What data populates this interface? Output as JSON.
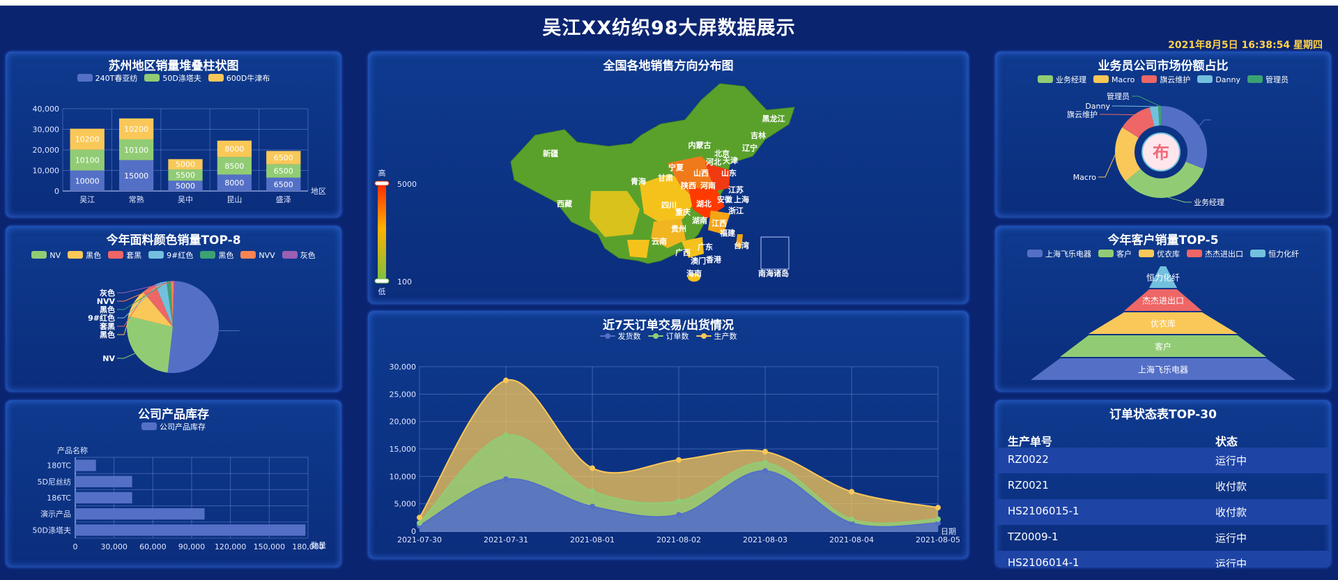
{
  "page": {
    "title": "吴江XX纺织98大屏数据展示",
    "datetime": "2021年8月5日 16:38:54 星期四"
  },
  "panels": {
    "p1": {
      "title": "苏州地区销量堆叠柱状图"
    },
    "p2": {
      "title": "今年面料颜色销量TOP-8"
    },
    "p3": {
      "title": "公司产品库存"
    },
    "p4": {
      "title": "全国各地销售方向分布图"
    },
    "p5": {
      "title": "近7天订单交易/出货情况"
    },
    "p6": {
      "title": "业务员公司市场份额占比"
    },
    "p7": {
      "title": "今年客户销量TOP-5"
    },
    "p8": {
      "title": "订单状态表TOP-30"
    }
  },
  "colors": {
    "blue": "#5470c6",
    "green": "#91cc75",
    "yellow": "#fac858",
    "red": "#ee6666",
    "cyan": "#73c0de",
    "teal": "#3ba272",
    "orange": "#fc8452",
    "purple": "#9a60b4"
  },
  "chart_data": [
    {
      "id": "stacked-bar",
      "type": "bar",
      "stacked": true,
      "categories": [
        "吴江",
        "常熟",
        "吴中",
        "昆山",
        "盛泽"
      ],
      "series": [
        {
          "name": "240T春亚纺",
          "color": "#5470c6",
          "values": [
            10000,
            15000,
            5000,
            8000,
            6500
          ]
        },
        {
          "name": "50D涤塔夫",
          "color": "#91cc75",
          "values": [
            10100,
            10100,
            5500,
            8500,
            6500
          ]
        },
        {
          "name": "600D牛津布",
          "color": "#fac858",
          "values": [
            10200,
            10200,
            5000,
            8000,
            6500
          ]
        }
      ],
      "ylim": [
        0,
        40000
      ],
      "yticks": [
        "0",
        "10,000",
        "20,000",
        "30,000",
        "40,000"
      ],
      "xlabel": "地区"
    },
    {
      "id": "color-pie",
      "type": "pie",
      "legend": [
        {
          "name": "NV",
          "color": "#91cc75"
        },
        {
          "name": "黑色",
          "color": "#fac858"
        },
        {
          "name": "套黑",
          "color": "#ee6666"
        },
        {
          "name": "9#红色",
          "color": "#73c0de"
        },
        {
          "name": "黑色",
          "color": "#3ba272"
        },
        {
          "name": "NVV",
          "color": "#fc8452"
        },
        {
          "name": "灰色",
          "color": "#9a60b4"
        }
      ],
      "slices": [
        {
          "name": "",
          "value": 51,
          "color": "#5470c6"
        },
        {
          "name": "NV",
          "value": 27,
          "color": "#91cc75"
        },
        {
          "name": "黑色",
          "value": 10,
          "color": "#fac858"
        },
        {
          "name": "套黑",
          "value": 5,
          "color": "#ee6666"
        },
        {
          "name": "9#红色",
          "value": 4,
          "color": "#73c0de"
        },
        {
          "name": "黑色",
          "value": 1.5,
          "color": "#3ba272"
        },
        {
          "name": "NVV",
          "value": 1,
          "color": "#fc8452"
        },
        {
          "name": "灰色",
          "value": 0.5,
          "color": "#9a60b4"
        }
      ]
    },
    {
      "id": "inventory-bar",
      "type": "bar",
      "orientation": "horizontal",
      "legend": "公司产品库存",
      "ylabel": "产品名称",
      "xlabel": "数量",
      "categories": [
        "180TC",
        "5D尼丝纺",
        "186TC",
        "演示产品",
        "50D涤塔夫"
      ],
      "values": [
        16000,
        44000,
        44000,
        100000,
        178000
      ],
      "xlim": [
        0,
        180000
      ],
      "xticks": [
        "0",
        "30,000",
        "60,000",
        "90,000",
        "120,000",
        "150,000",
        "180,000"
      ]
    },
    {
      "id": "china-map",
      "type": "heatmap",
      "visual_map": {
        "high_label": "高",
        "low_label": "低",
        "max": "5000",
        "min": "100"
      },
      "regions": [
        "新疆",
        "西藏",
        "青海",
        "甘肃",
        "内蒙古",
        "黑龙江",
        "吉林",
        "辽宁",
        "北京",
        "天津",
        "河北",
        "山西",
        "宁夏",
        "陕西",
        "山东",
        "河南",
        "江苏",
        "安徽",
        "上海",
        "浙江",
        "湖北",
        "四川",
        "重庆",
        "湖南",
        "江西",
        "福建",
        "贵州",
        "云南",
        "广西",
        "广东",
        "澳门",
        "香港",
        "台湾",
        "海南",
        "南海诸岛"
      ]
    },
    {
      "id": "orders-area",
      "type": "area",
      "x": [
        "2021-07-30",
        "2021-07-31",
        "2021-08-01",
        "2021-08-02",
        "2021-08-03",
        "2021-08-04",
        "2021-08-05"
      ],
      "xlabel": "日期",
      "series": [
        {
          "name": "发货数",
          "color": "#5470c6",
          "values": [
            1000,
            9500,
            4500,
            3000,
            11000,
            1500,
            1500
          ]
        },
        {
          "name": "订单数",
          "color": "#91cc75",
          "values": [
            1500,
            17500,
            7300,
            5500,
            12500,
            2200,
            2200
          ]
        },
        {
          "name": "生产数",
          "color": "#fac858",
          "values": [
            2500,
            27500,
            11500,
            13000,
            14500,
            7200,
            4300
          ]
        }
      ],
      "ylim": [
        0,
        30000
      ],
      "yticks": [
        "0",
        "5,000",
        "10,000",
        "15,000",
        "20,000",
        "25,000",
        "30,000"
      ]
    },
    {
      "id": "share-donut",
      "type": "pie",
      "donut": true,
      "center_badge": "布",
      "slices": [
        {
          "name": "业务经理",
          "value": 33,
          "color": "#91cc75"
        },
        {
          "name": "Macro",
          "value": 20,
          "color": "#fac858"
        },
        {
          "name": "旗云维护",
          "value": 12,
          "color": "#ee6666"
        },
        {
          "name": "Danny",
          "value": 3,
          "color": "#73c0de"
        },
        {
          "name": "管理员",
          "value": 1,
          "color": "#3ba272"
        },
        {
          "name": "",
          "value": 31,
          "color": "#5470c6"
        }
      ]
    },
    {
      "id": "client-funnel",
      "type": "funnel",
      "legend": [
        {
          "name": "上海飞乐电器",
          "color": "#5470c6"
        },
        {
          "name": "客户",
          "color": "#91cc75"
        },
        {
          "name": "优衣库",
          "color": "#fac858"
        },
        {
          "name": "杰杰进出口",
          "color": "#ee6666"
        },
        {
          "name": "恒力化纤",
          "color": "#73c0de"
        }
      ],
      "levels_top_to_bottom": [
        {
          "name": "恒力化纤",
          "color": "#73c0de"
        },
        {
          "name": "杰杰进出口",
          "color": "#ee6666"
        },
        {
          "name": "优衣库",
          "color": "#fac858"
        },
        {
          "name": "客户",
          "color": "#91cc75"
        },
        {
          "name": "上海飞乐电器",
          "color": "#5470c6"
        }
      ]
    },
    {
      "id": "order-status",
      "type": "table",
      "columns": [
        "生产单号",
        "状态"
      ],
      "rows": [
        [
          "RZ0022",
          "运行中"
        ],
        [
          "RZ0021",
          "收付款"
        ],
        [
          "HS2106015-1",
          "收付款"
        ],
        [
          "TZ0009-1",
          "运行中"
        ],
        [
          "HS2106014-1",
          "运行中"
        ]
      ]
    }
  ]
}
